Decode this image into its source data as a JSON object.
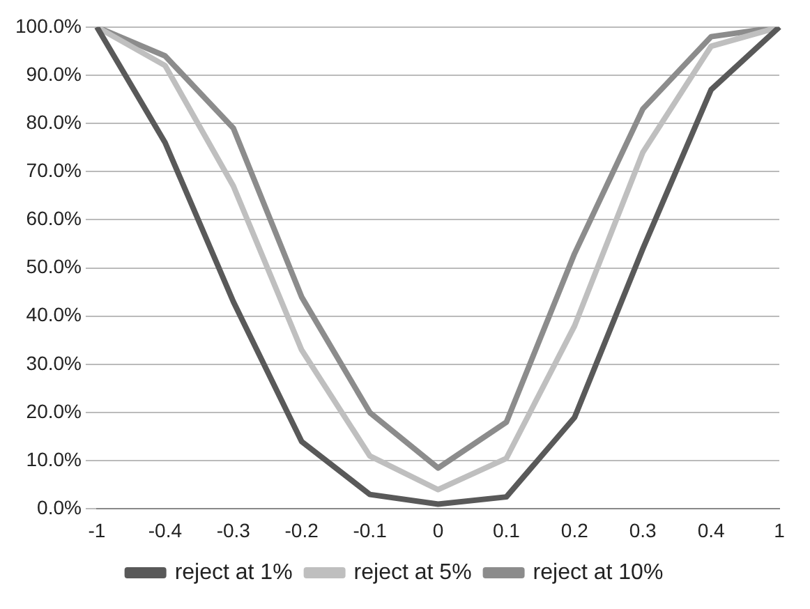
{
  "chart_data": {
    "type": "line",
    "categories": [
      "-1",
      "-0.4",
      "-0.3",
      "-0.2",
      "-0.1",
      "0",
      "0.1",
      "0.2",
      "0.3",
      "0.4",
      "1"
    ],
    "series": [
      {
        "name": "reject at 1%",
        "color": "#595959",
        "values": [
          100,
          76,
          43,
          14,
          3,
          1,
          2.5,
          19,
          54,
          87,
          100
        ]
      },
      {
        "name": "reject at 5%",
        "color": "#bfbfbf",
        "values": [
          100,
          92,
          67,
          33,
          11,
          4,
          10.5,
          38,
          74,
          96,
          100
        ]
      },
      {
        "name": "reject at 10%",
        "color": "#8c8c8c",
        "values": [
          100,
          94,
          79,
          44,
          20,
          8.5,
          18,
          53,
          83,
          98,
          100
        ]
      }
    ],
    "ylim": [
      0,
      100
    ],
    "yticks": [
      {
        "value": 0,
        "label": "0.0%"
      },
      {
        "value": 10,
        "label": "10.0%"
      },
      {
        "value": 20,
        "label": "20.0%"
      },
      {
        "value": 30,
        "label": "30.0%"
      },
      {
        "value": 40,
        "label": "40.0%"
      },
      {
        "value": 50,
        "label": "50.0%"
      },
      {
        "value": 60,
        "label": "60.0%"
      },
      {
        "value": 70,
        "label": "70.0%"
      },
      {
        "value": 80,
        "label": "80.0%"
      },
      {
        "value": 90,
        "label": "90.0%"
      },
      {
        "value": 100,
        "label": "100.0%"
      }
    ],
    "grid": "y",
    "legend": "bottom",
    "marker": "none",
    "line_style": "solid"
  }
}
